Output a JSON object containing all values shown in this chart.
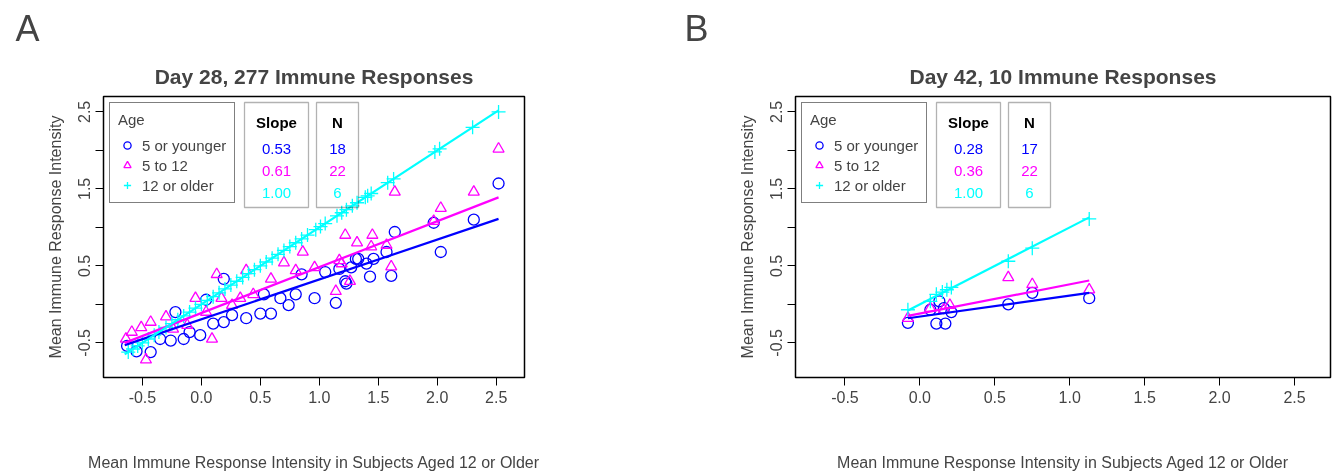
{
  "chart_data": [
    {
      "type": "scatter",
      "title": "Day 28, 277 Immune Responses",
      "xlabel": "Mean Immune Response Intensity in Subjects Aged 12 or Older",
      "ylabel": "Mean Immune Response Intensity",
      "legend_title": "Age",
      "legend": "top left",
      "grid": false,
      "xlim": [
        -0.83,
        2.74
      ],
      "ylim": [
        -0.95,
        2.7
      ],
      "xticks": [
        -0.5,
        {
          "value": 0,
          "label": "0.0"
        },
        0.5,
        {
          "value": 1,
          "label": "1.0"
        },
        1.5,
        {
          "value": 2,
          "label": "2.0"
        },
        2.5
      ],
      "yticks": [
        -0.5,
        {
          "value": 0,
          "label": null
        },
        0.5,
        {
          "value": 1,
          "label": null
        },
        1.5,
        {
          "value": 2,
          "label": null
        },
        2.5
      ],
      "annotations": [
        "A",
        "Slope",
        "0.53",
        "0.61",
        "1.00",
        "N",
        "18",
        "22",
        "6"
      ],
      "series": [
        {
          "name": "5 or younger",
          "color": "#0000ff",
          "marker": "circle",
          "x": [
            2.52,
            2.31,
            2.03,
            1.97,
            1.64,
            1.57,
            1.61,
            1.43,
            1.46,
            1.4,
            1.33,
            1.27,
            1.22,
            1.17,
            1.05,
            1.31,
            1.23,
            1.14,
            0.96,
            0.85,
            0.8,
            0.74,
            0.67,
            0.59,
            0.5,
            0.38,
            0.26,
            0.19,
            -0.01,
            -0.15,
            -0.26,
            -0.43,
            -0.55,
            -0.63,
            -0.22,
            0.19,
            0.04,
            0.53,
            0.1,
            -0.1,
            -0.35
          ],
          "values": [
            1.57,
            1.1,
            0.68,
            1.06,
            0.94,
            0.68,
            0.37,
            0.36,
            0.59,
            0.53,
            0.59,
            0.48,
            0.3,
            0.46,
            0.42,
            0.59,
            0.27,
            0.02,
            0.08,
            0.39,
            0.13,
            -0.01,
            0.08,
            -0.12,
            -0.12,
            -0.18,
            -0.14,
            -0.23,
            -0.4,
            -0.45,
            -0.47,
            -0.62,
            -0.61,
            -0.54,
            -0.1,
            0.33,
            0.06,
            0.13,
            -0.25,
            -0.36,
            -0.45
          ]
        },
        {
          "name": "5 to 12",
          "color": "#ff00ff",
          "marker": "triangle",
          "x": [
            2.52,
            2.31,
            2.03,
            1.97,
            1.64,
            1.61,
            1.57,
            1.45,
            1.44,
            1.32,
            1.22,
            1.17,
            0.96,
            1.14,
            0.86,
            0.7,
            0.8,
            0.59,
            0.38,
            0.13,
            -0.05,
            0.09,
            -0.47,
            -0.59,
            -0.51,
            -0.43,
            -0.3,
            1.19,
            1.26,
            0.44,
            0.26,
            0.33,
            0.04,
            -0.12,
            -0.24,
            -0.64,
            0.17
          ],
          "values": [
            2.02,
            1.46,
            1.25,
            1.08,
            1.46,
            0.49,
            0.77,
            0.9,
            0.75,
            0.8,
            0.9,
            0.57,
            0.48,
            0.17,
            0.68,
            0.54,
            0.44,
            0.33,
            0.44,
            0.39,
            0.08,
            -0.45,
            -0.72,
            -0.36,
            -0.3,
            -0.23,
            -0.16,
            0.53,
            0.3,
            0.13,
            -0.01,
            0.08,
            -0.1,
            -0.27,
            -0.32,
            -0.45,
            0.08
          ]
        },
        {
          "name": "12 or older",
          "color": "#00ffff",
          "marker": "cross",
          "x": [
            -0.62,
            -0.58,
            -0.54,
            -0.5,
            -0.45,
            -0.4,
            -0.36,
            -0.3,
            -0.25,
            -0.2,
            -0.15,
            -0.1,
            -0.05,
            0.0,
            0.05,
            0.1,
            0.15,
            0.2,
            0.25,
            0.3,
            0.35,
            0.4,
            0.45,
            0.5,
            0.55,
            0.6,
            0.65,
            0.7,
            0.75,
            0.8,
            0.85,
            0.9,
            0.97,
            1.01,
            1.05,
            1.15,
            1.19,
            1.23,
            1.28,
            1.32,
            1.39,
            1.41,
            1.44,
            1.58,
            1.63,
            1.98,
            2.02,
            2.3,
            2.52
          ],
          "values": [
            -0.62,
            -0.58,
            -0.54,
            -0.5,
            -0.45,
            -0.4,
            -0.36,
            -0.3,
            -0.25,
            -0.2,
            -0.15,
            -0.1,
            -0.05,
            0.0,
            0.05,
            0.1,
            0.15,
            0.2,
            0.25,
            0.3,
            0.35,
            0.4,
            0.45,
            0.5,
            0.55,
            0.6,
            0.65,
            0.7,
            0.75,
            0.8,
            0.85,
            0.9,
            0.97,
            1.01,
            1.05,
            1.15,
            1.19,
            1.23,
            1.28,
            1.32,
            1.39,
            1.41,
            1.44,
            1.58,
            1.63,
            1.98,
            2.02,
            2.3,
            2.5
          ]
        },
        {
          "type": "line",
          "color": "#0000ff",
          "x": [
            -0.65,
            2.52
          ],
          "values": [
            -0.53,
            1.11
          ]
        },
        {
          "type": "line",
          "color": "#ff00ff",
          "x": [
            -0.65,
            2.52
          ],
          "values": [
            -0.5,
            1.39
          ]
        },
        {
          "type": "line",
          "color": "#00ffff",
          "x": [
            -0.65,
            2.52
          ],
          "values": [
            -0.65,
            2.52
          ]
        }
      ]
    },
    {
      "type": "scatter",
      "title": "Day 42, 10 Immune Responses",
      "xlabel": "Mean Immune Response Intensity in Subjects Aged 12 or Older",
      "ylabel": "Mean Immune Response Intensity",
      "legend_title": "Age",
      "legend": "top left",
      "grid": false,
      "xlim": [
        -0.83,
        2.74
      ],
      "ylim": [
        -0.95,
        2.7
      ],
      "xticks": [
        -0.5,
        {
          "value": 0,
          "label": "0.0"
        },
        0.5,
        {
          "value": 1,
          "label": "1.0"
        },
        1.5,
        {
          "value": 2,
          "label": "2.0"
        },
        2.5
      ],
      "yticks": [
        -0.5,
        {
          "value": 0,
          "label": null
        },
        0.5,
        {
          "value": 1,
          "label": null
        },
        1.5,
        {
          "value": 2,
          "label": null
        },
        2.5
      ],
      "annotations": [
        "B",
        "Slope",
        "0.28",
        "0.36",
        "1.00",
        "N",
        "17",
        "22",
        "6"
      ],
      "series": [
        {
          "name": "5 or younger",
          "color": "#0000ff",
          "marker": "circle",
          "x": [
            -0.08,
            0.11,
            0.17,
            0.07,
            0.13,
            0.21,
            0.59,
            0.75,
            1.13,
            0.16
          ],
          "values": [
            -0.24,
            -0.25,
            -0.25,
            -0.07,
            0.04,
            -0.1,
            0.0,
            0.15,
            0.08,
            -0.05
          ]
        },
        {
          "name": "5 to 12",
          "color": "#ff00ff",
          "marker": "triangle",
          "x": [
            -0.08,
            0.07,
            0.16,
            0.2,
            0.59,
            0.75,
            1.13
          ],
          "values": [
            -0.18,
            -0.05,
            -0.07,
            -0.01,
            0.35,
            0.26,
            0.19
          ]
        },
        {
          "name": "12 or older",
          "color": "#00ffff",
          "marker": "cross",
          "x": [
            -0.08,
            0.07,
            0.11,
            0.15,
            0.18,
            0.21,
            0.59,
            0.75,
            1.13
          ],
          "values": [
            -0.07,
            0.04,
            0.13,
            0.16,
            0.19,
            0.22,
            0.56,
            0.73,
            1.11
          ]
        },
        {
          "type": "line",
          "color": "#0000ff",
          "x": [
            -0.08,
            1.13
          ],
          "values": [
            -0.18,
            0.15
          ]
        },
        {
          "type": "line",
          "color": "#ff00ff",
          "x": [
            -0.08,
            1.13
          ],
          "values": [
            -0.15,
            0.31
          ]
        },
        {
          "type": "line",
          "color": "#00ffff",
          "x": [
            -0.08,
            1.13
          ],
          "values": [
            -0.08,
            1.13
          ]
        }
      ]
    }
  ]
}
